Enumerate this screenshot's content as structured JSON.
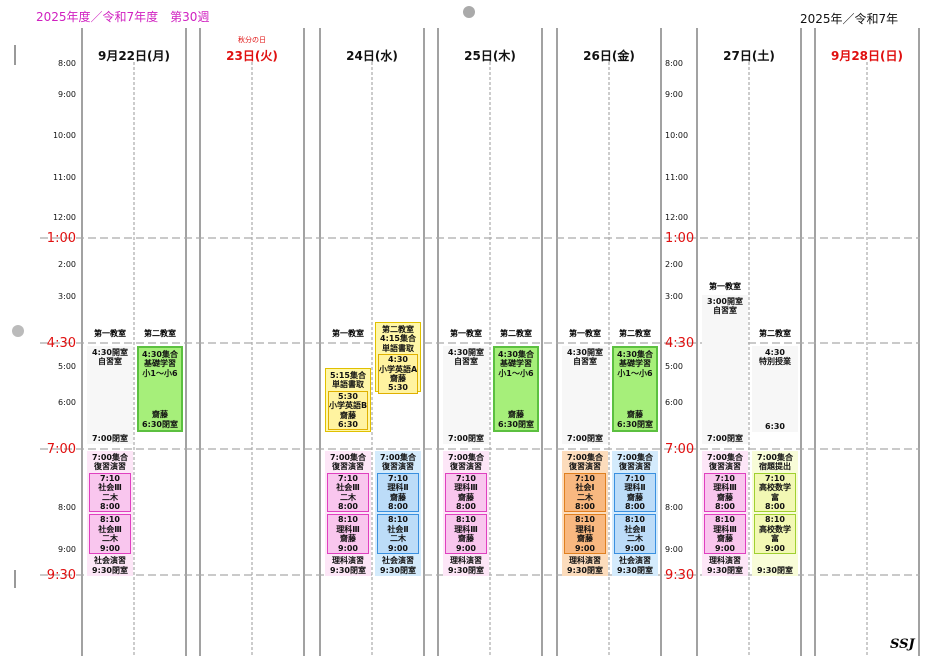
{
  "header": {
    "left": "2025年度／令和7年度　第30週",
    "right": "2025年／令和7年"
  },
  "footer": "SSJ",
  "time_axis": [
    "8:00",
    "9:00",
    "10:00",
    "11:00",
    "12:00",
    "1:00",
    "2:00",
    "3:00",
    "4:30",
    "5:00",
    "6:00",
    "7:00",
    "8:00",
    "9:00",
    "9:30"
  ],
  "days": [
    {
      "date": "9月22日(月)",
      "blocks": [
        {
          "room": "第一教室",
          "top": [
            "4:30開室",
            "自習室"
          ],
          "bottom": [
            "7:00閉室"
          ]
        },
        {
          "room": "第二教室",
          "top": [
            "4:30集合",
            "基礎学習",
            "小1～小6"
          ],
          "bottom": [
            "齋藤",
            "6:30閉室"
          ]
        },
        {
          "top": [
            "7:00集合",
            "復習演習"
          ],
          "items": [
            [
              "7:10",
              "社会Ⅲ",
              "二木",
              "8:00"
            ],
            [
              "8:10",
              "社会Ⅲ",
              "二木",
              "9:00"
            ]
          ],
          "bottom": [
            "社会演習",
            "9:30閉室"
          ]
        }
      ]
    },
    {
      "date": "23日(火)",
      "note": "秋分の日",
      "blocks": []
    },
    {
      "date": "24日(水)",
      "blocks": [
        {
          "room": "第一教室",
          "top": [
            "5:15集合",
            "単語書取"
          ],
          "items": [
            [
              "5:30",
              "小学英語B",
              "齋藤",
              "6:30"
            ]
          ]
        },
        {
          "top": [
            "第二教室",
            "4:15集合",
            "単語書取"
          ],
          "items": [
            [
              "4:30",
              "小学英語A",
              "齋藤",
              "5:30"
            ]
          ]
        },
        {
          "top": [
            "7:00集合",
            "復習演習"
          ],
          "items": [
            [
              "7:10",
              "社会Ⅲ",
              "二木",
              "8:00"
            ],
            [
              "8:10",
              "理科Ⅲ",
              "齋藤",
              "9:00"
            ]
          ],
          "bottom": [
            "理科演習",
            "9:30閉室"
          ]
        },
        {
          "top": [
            "7:00集合",
            "復習演習"
          ],
          "items": [
            [
              "7:10",
              "理科Ⅱ",
              "齋藤",
              "8:00"
            ],
            [
              "8:10",
              "社会Ⅱ",
              "二木",
              "9:00"
            ]
          ],
          "bottom": [
            "社会演習",
            "9:30閉室"
          ]
        }
      ]
    },
    {
      "date": "25日(木)",
      "blocks": [
        {
          "room": "第一教室",
          "top": [
            "4:30開室",
            "自習室"
          ],
          "bottom": [
            "7:00閉室"
          ]
        },
        {
          "room": "第二教室",
          "top": [
            "4:30集合",
            "基礎学習",
            "小1～小6"
          ],
          "bottom": [
            "齋藤",
            "6:30閉室"
          ]
        },
        {
          "top": [
            "7:00集合",
            "復習演習"
          ],
          "items": [
            [
              "7:10",
              "理科Ⅲ",
              "齋藤",
              "8:00"
            ],
            [
              "8:10",
              "理科Ⅲ",
              "齋藤",
              "9:00"
            ]
          ],
          "bottom": [
            "理科演習",
            "9:30閉室"
          ]
        }
      ]
    },
    {
      "date": "26日(金)",
      "blocks": [
        {
          "room": "第一教室",
          "top": [
            "4:30開室",
            "自習室"
          ],
          "bottom": [
            "7:00閉室"
          ]
        },
        {
          "room": "第二教室",
          "top": [
            "4:30集合",
            "基礎学習",
            "小1～小6"
          ],
          "bottom": [
            "齋藤",
            "6:30閉室"
          ]
        },
        {
          "top": [
            "7:00集合",
            "復習演習"
          ],
          "items": [
            [
              "7:10",
              "社会Ⅰ",
              "二木",
              "8:00"
            ],
            [
              "8:10",
              "理科Ⅰ",
              "齋藤",
              "9:00"
            ]
          ],
          "bottom": [
            "理科演習",
            "9:30閉室"
          ]
        },
        {
          "top": [
            "7:00集合",
            "復習演習"
          ],
          "items": [
            [
              "7:10",
              "理科Ⅱ",
              "齋藤",
              "8:00"
            ],
            [
              "8:10",
              "社会Ⅱ",
              "二木",
              "9:00"
            ]
          ],
          "bottom": [
            "社会演習",
            "9:30閉室"
          ]
        }
      ]
    },
    {
      "date": "27日(土)",
      "blocks": [
        {
          "room": "第一教室",
          "top": [
            "3:00開室",
            "自習室"
          ],
          "bottom": [
            "7:00閉室"
          ]
        },
        {
          "room": "第二教室",
          "top": [
            "4:30",
            "特別授業"
          ],
          "bottom": [
            "6:30"
          ]
        },
        {
          "top": [
            "7:00集合",
            "復習演習"
          ],
          "items": [
            [
              "7:10",
              "理科Ⅲ",
              "齋藤",
              "8:00"
            ],
            [
              "8:10",
              "理科Ⅲ",
              "齋藤",
              "9:00"
            ]
          ],
          "bottom": [
            "理科演習",
            "9:30閉室"
          ]
        },
        {
          "top": [
            "7:00集合",
            "宿題提出"
          ],
          "items": [
            [
              "7:10",
              "高校数学",
              "富",
              "8:00"
            ],
            [
              "8:10",
              "高校数学",
              "富",
              "9:00"
            ]
          ],
          "bottom": [
            "9:30閉室"
          ]
        }
      ]
    },
    {
      "date": "9月28日(日)",
      "blocks": []
    }
  ]
}
